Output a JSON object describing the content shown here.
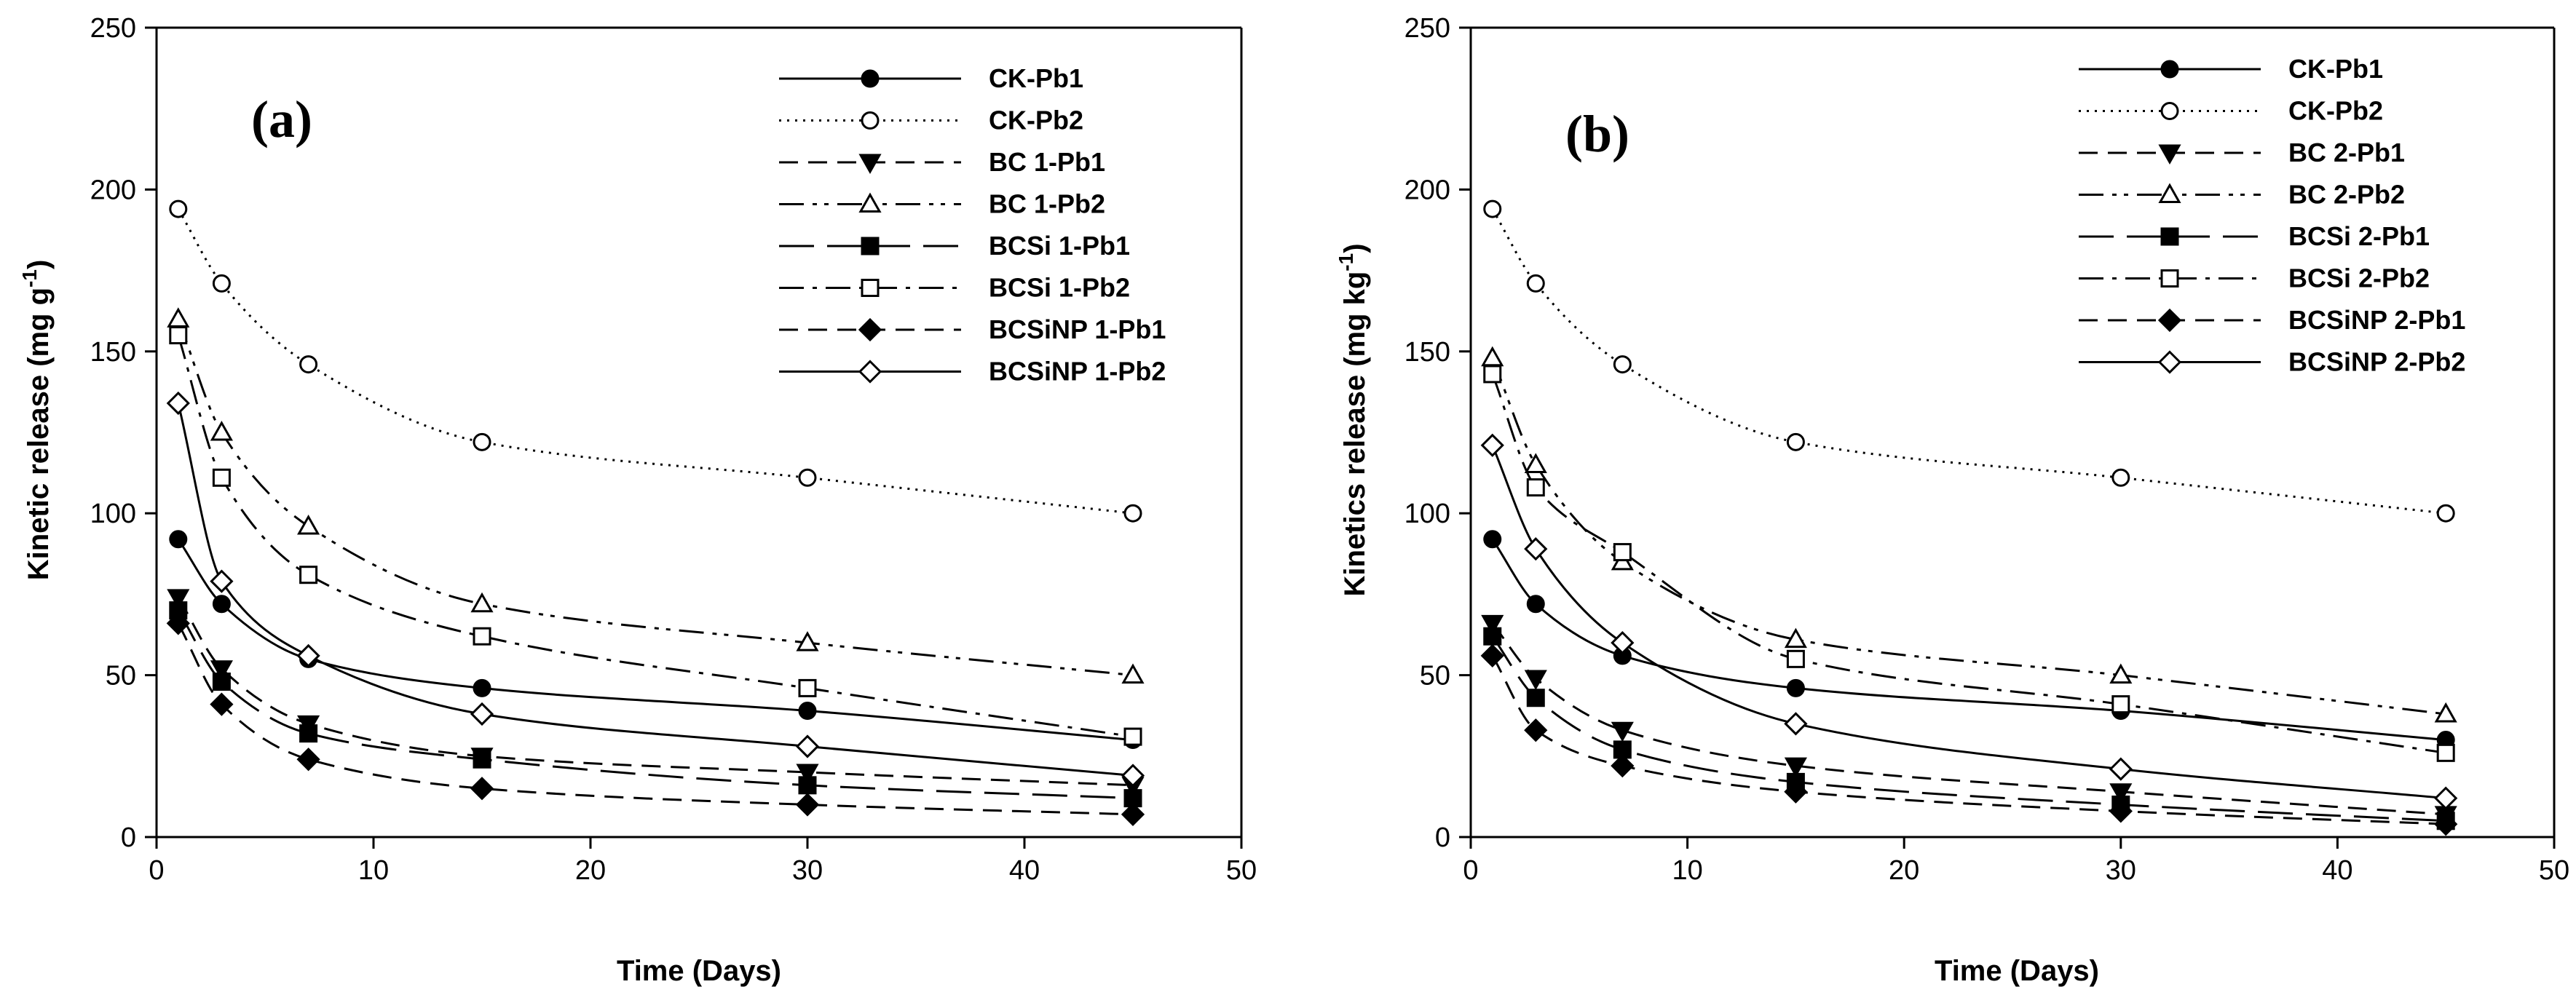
{
  "chart_data": [
    {
      "type": "line",
      "panel_label": "(a)",
      "xlabel": "Time (Days)",
      "ylabel": "Kinetic release (mg g",
      "ylabel_sup": "-1",
      "ylabel_close": ")",
      "xlim": [
        0,
        50
      ],
      "ylim": [
        0,
        250
      ],
      "xticks": [
        "0",
        "10",
        "20",
        "30",
        "40",
        "50"
      ],
      "yticks": [
        "0",
        "50",
        "100",
        "150",
        "200",
        "250"
      ],
      "legend_position": "top-right",
      "x": [
        1,
        3,
        7,
        15,
        30,
        45
      ],
      "series": [
        {
          "name": "CK-Pb1",
          "marker": "circle-filled",
          "dash": "solid",
          "values": [
            92,
            72,
            55,
            46,
            39,
            30
          ]
        },
        {
          "name": "CK-Pb2",
          "marker": "circle-open",
          "dash": "dotted",
          "values": [
            194,
            171,
            146,
            122,
            111,
            100
          ]
        },
        {
          "name": "BC 1-Pb1",
          "marker": "triangle-down-filled",
          "dash": "dashed",
          "values": [
            74,
            52,
            35,
            25,
            20,
            16
          ]
        },
        {
          "name": "BC 1-Pb2",
          "marker": "triangle-up-open",
          "dash": "dash-dot-dot",
          "values": [
            160,
            125,
            96,
            72,
            60,
            50
          ]
        },
        {
          "name": "BCSi 1-Pb1",
          "marker": "square-filled",
          "dash": "long-dash",
          "values": [
            70,
            48,
            32,
            24,
            16,
            12
          ]
        },
        {
          "name": "BCSi 1-Pb2",
          "marker": "square-open",
          "dash": "dash-dot",
          "values": [
            155,
            111,
            81,
            62,
            46,
            31
          ]
        },
        {
          "name": "BCSiNP 1-Pb1",
          "marker": "diamond-filled",
          "dash": "dashed",
          "values": [
            66,
            41,
            24,
            15,
            10,
            7
          ]
        },
        {
          "name": "BCSiNP 1-Pb2",
          "marker": "diamond-open",
          "dash": "solid",
          "values": [
            134,
            79,
            56,
            38,
            28,
            19
          ]
        }
      ]
    },
    {
      "type": "line",
      "panel_label": "(b)",
      "xlabel": "Time (Days)",
      "ylabel": "Kinetics release (mg kg",
      "ylabel_sup": "-1",
      "ylabel_close": ")",
      "xlim": [
        0,
        50
      ],
      "ylim": [
        0,
        250
      ],
      "xticks": [
        "0",
        "10",
        "20",
        "30",
        "40",
        "50"
      ],
      "yticks": [
        "0",
        "50",
        "100",
        "150",
        "200",
        "250"
      ],
      "legend_position": "top-right",
      "x": [
        1,
        3,
        7,
        15,
        30,
        45
      ],
      "series": [
        {
          "name": "CK-Pb1",
          "marker": "circle-filled",
          "dash": "solid",
          "values": [
            92,
            72,
            56,
            46,
            39,
            30
          ]
        },
        {
          "name": "CK-Pb2",
          "marker": "circle-open",
          "dash": "dotted",
          "values": [
            194,
            171,
            146,
            122,
            111,
            100
          ]
        },
        {
          "name": "BC 2-Pb1",
          "marker": "triangle-down-filled",
          "dash": "dashed",
          "values": [
            66,
            49,
            33,
            22,
            14,
            7
          ]
        },
        {
          "name": "BC 2-Pb2",
          "marker": "triangle-up-open",
          "dash": "dash-dot-dot",
          "values": [
            148,
            115,
            85,
            61,
            50,
            38
          ]
        },
        {
          "name": "BCSi 2-Pb1",
          "marker": "square-filled",
          "dash": "long-dash",
          "values": [
            62,
            43,
            27,
            17,
            10,
            5
          ]
        },
        {
          "name": "BCSi 2-Pb2",
          "marker": "square-open",
          "dash": "dash-dot",
          "values": [
            143,
            108,
            88,
            55,
            41,
            26
          ]
        },
        {
          "name": "BCSiNP 2-Pb1",
          "marker": "diamond-filled",
          "dash": "dashed",
          "values": [
            56,
            33,
            22,
            14,
            8,
            4
          ]
        },
        {
          "name": "BCSiNP 2-Pb2",
          "marker": "diamond-open",
          "dash": "solid",
          "values": [
            121,
            89,
            60,
            35,
            21,
            12
          ]
        }
      ]
    }
  ]
}
